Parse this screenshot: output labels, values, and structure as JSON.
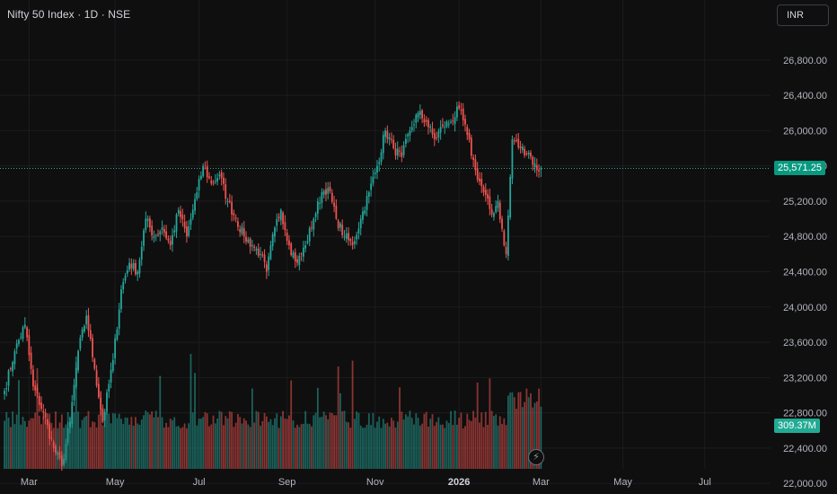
{
  "header": {
    "symbol_title": "Nifty 50 Index · 1D · NSE",
    "currency": "INR"
  },
  "indicators": {
    "last_price": "25,571.25",
    "last_volume": "309.37M",
    "snapshot_icon": "lightning-bolt-icon"
  },
  "colors": {
    "up": "#26a69a",
    "down": "#ef5350",
    "price_line": "#22ab94",
    "background": "#0f0f0f",
    "grid": "#1c1c1f",
    "axis_text": "#b2b5be"
  },
  "chart_data": {
    "type": "candlestick",
    "interval": "1D",
    "price_axis": {
      "ticks": [
        22000,
        22400,
        22800,
        23200,
        23600,
        24000,
        24400,
        24800,
        25200,
        25600,
        26000,
        26400,
        26800
      ],
      "tick_labels": [
        "22,000.00",
        "22,400.00",
        "22,800.00",
        "23,200.00",
        "23,600.00",
        "24,000.00",
        "24,400.00",
        "24,800.00",
        "25,200.00",
        "25,600.00",
        "26,000.00",
        "26,400.00",
        "26,800.00"
      ],
      "visible_range": [
        21880,
        27480
      ]
    },
    "time_axis": {
      "labels": [
        "Mar",
        "May",
        "Jul",
        "Sep",
        "Nov",
        "2026",
        "Mar",
        "May",
        "Jul"
      ],
      "label_index": [
        12,
        54,
        95,
        138,
        181,
        222,
        262,
        302,
        342
      ]
    },
    "last_price": 25571.25,
    "volume_last_millions": 309.37,
    "anchors": [
      [
        0,
        23050
      ],
      [
        5,
        23500
      ],
      [
        10,
        23800
      ],
      [
        14,
        23100
      ],
      [
        19,
        22800
      ],
      [
        24,
        22400
      ],
      [
        28,
        22200
      ],
      [
        32,
        22700
      ],
      [
        36,
        23500
      ],
      [
        40,
        23900
      ],
      [
        44,
        23300
      ],
      [
        48,
        22700
      ],
      [
        53,
        23400
      ],
      [
        57,
        24200
      ],
      [
        61,
        24500
      ],
      [
        65,
        24400
      ],
      [
        69,
        25000
      ],
      [
        73,
        24800
      ],
      [
        77,
        24900
      ],
      [
        81,
        24700
      ],
      [
        85,
        25100
      ],
      [
        89,
        24800
      ],
      [
        94,
        25300
      ],
      [
        97,
        25600
      ],
      [
        101,
        25400
      ],
      [
        105,
        25500
      ],
      [
        109,
        25200
      ],
      [
        113,
        25000
      ],
      [
        117,
        24800
      ],
      [
        121,
        24700
      ],
      [
        125,
        24600
      ],
      [
        128,
        24400
      ],
      [
        132,
        24900
      ],
      [
        135,
        25100
      ],
      [
        139,
        24700
      ],
      [
        143,
        24500
      ],
      [
        147,
        24700
      ],
      [
        151,
        25000
      ],
      [
        155,
        25300
      ],
      [
        158,
        25350
      ],
      [
        162,
        25000
      ],
      [
        166,
        24800
      ],
      [
        170,
        24700
      ],
      [
        174,
        25000
      ],
      [
        178,
        25300
      ],
      [
        182,
        25600
      ],
      [
        186,
        26000
      ],
      [
        190,
        25800
      ],
      [
        194,
        25700
      ],
      [
        198,
        26000
      ],
      [
        202,
        26200
      ],
      [
        206,
        26100
      ],
      [
        210,
        25900
      ],
      [
        214,
        26050
      ],
      [
        218,
        26100
      ],
      [
        222,
        26250
      ],
      [
        226,
        25950
      ],
      [
        230,
        25550
      ],
      [
        234,
        25300
      ],
      [
        238,
        25050
      ],
      [
        241,
        25200
      ],
      [
        244,
        24700
      ],
      [
        245,
        24600
      ],
      [
        248,
        25900
      ],
      [
        252,
        25800
      ],
      [
        256,
        25750
      ],
      [
        260,
        25550
      ],
      [
        262,
        25571.25
      ]
    ]
  }
}
